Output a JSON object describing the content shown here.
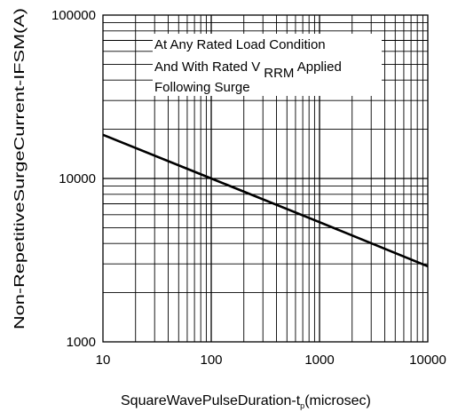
{
  "chart_data": {
    "type": "line",
    "x_scale": "log",
    "y_scale": "log",
    "xlim": [
      10,
      10000
    ],
    "ylim": [
      1000,
      100000
    ],
    "x_ticks": [
      "10",
      "100",
      "1000",
      "10000"
    ],
    "y_ticks": [
      "100000",
      "10000",
      "1000"
    ],
    "grid": true,
    "xlabel": "SquareWavePulseDuration-t",
    "xlabel_sub": "p",
    "xlabel_unit": "(microsec)",
    "ylabel": "Non-RepetitiveSurgeCurrent-IFSM(A)",
    "annotation": {
      "line1": "At Any Rated Load Condition",
      "line2_pre": "And With Rated V",
      "line2_sub": "RRM",
      "line2_post": " Applied",
      "line3": "Following Surge"
    },
    "series": [
      {
        "x": [
          10,
          100,
          1000,
          10000
        ],
        "y": [
          18500,
          10000,
          5400,
          2900
        ],
        "color": "#000000"
      }
    ]
  }
}
